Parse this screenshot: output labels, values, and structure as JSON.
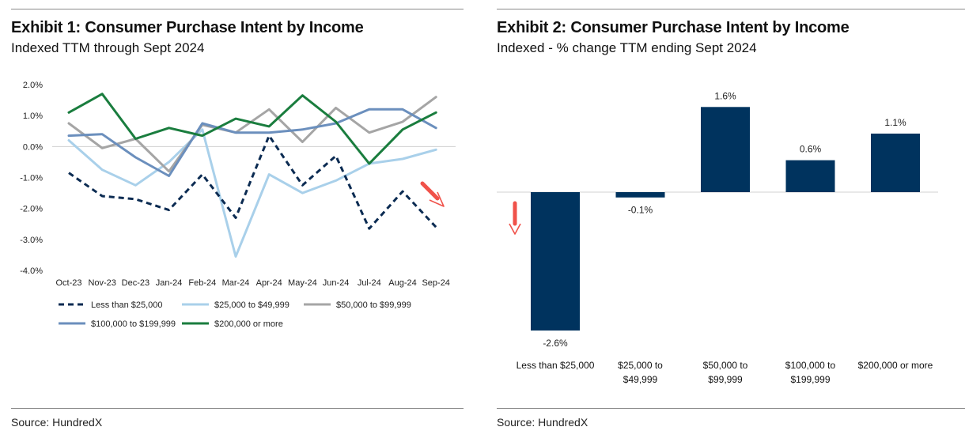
{
  "exhibit1": {
    "title": "Exhibit 1: Consumer Purchase Intent by Income",
    "subtitle": "Indexed TTM through Sept 2024",
    "source": "Source: HundredX",
    "chart_data": {
      "type": "line",
      "categories": [
        "Oct-23",
        "Nov-23",
        "Dec-23",
        "Jan-24",
        "Feb-24",
        "Mar-24",
        "Apr-24",
        "May-24",
        "Jun-24",
        "Jul-24",
        "Aug-24",
        "Sep-24"
      ],
      "y_ticks": [
        2.0,
        1.0,
        0.0,
        -1.0,
        -2.0,
        -3.0,
        -4.0
      ],
      "y_tick_labels": [
        "2.0%",
        "1.0%",
        "0.0%",
        "-1.0%",
        "-2.0%",
        "-3.0%",
        "-4.0%"
      ],
      "ylim": [
        -4.0,
        2.0
      ],
      "grid": false,
      "legend_position": "bottom",
      "series": [
        {
          "name": "Less than $25,000",
          "color": "#0b2b52",
          "dashed": true,
          "values": [
            -0.85,
            -1.6,
            -1.7,
            -2.05,
            -0.9,
            -2.3,
            0.35,
            -1.25,
            -0.3,
            -2.65,
            -1.45,
            -2.6
          ]
        },
        {
          "name": "$25,000 to $49,999",
          "color": "#a9d0ea",
          "dashed": false,
          "values": [
            0.2,
            -0.75,
            -1.25,
            -0.5,
            0.55,
            -3.55,
            -0.9,
            -1.5,
            -1.1,
            -0.55,
            -0.4,
            -0.1
          ]
        },
        {
          "name": "$50,000 to $99,999",
          "color": "#a5a5a5",
          "dashed": false,
          "values": [
            0.75,
            -0.05,
            0.25,
            -0.8,
            0.7,
            0.45,
            1.2,
            0.15,
            1.25,
            0.45,
            0.8,
            1.6
          ]
        },
        {
          "name": "$100,000 to $199,999",
          "color": "#6b8fbd",
          "dashed": false,
          "values": [
            0.35,
            0.4,
            -0.35,
            -0.95,
            0.75,
            0.45,
            0.45,
            0.55,
            0.75,
            1.2,
            1.2,
            0.6
          ]
        },
        {
          "name": "$200,000 or more",
          "color": "#1a7d3e",
          "dashed": false,
          "values": [
            1.1,
            1.7,
            0.25,
            0.6,
            0.35,
            0.9,
            0.65,
            1.65,
            0.8,
            -0.55,
            0.55,
            1.1
          ]
        }
      ]
    }
  },
  "exhibit2": {
    "title": "Exhibit 2: Consumer Purchase Intent by Income",
    "subtitle": "Indexed - % change TTM ending Sept 2024",
    "source": "Source: HundredX",
    "chart_data": {
      "type": "bar",
      "categories": [
        [
          "Less than $25,000"
        ],
        [
          "$25,000 to",
          "$49,999"
        ],
        [
          "$50,000 to",
          "$99,999"
        ],
        [
          "$100,000 to",
          "$199,999"
        ],
        [
          "$200,000 or more"
        ]
      ],
      "values": [
        -2.6,
        -0.1,
        1.6,
        0.6,
        1.1
      ],
      "data_labels": [
        "-2.6%",
        "-0.1%",
        "1.6%",
        "0.6%",
        "1.1%"
      ],
      "ylim": [
        -2.6,
        1.6
      ],
      "bar_color": "#00335e",
      "grid": false
    }
  },
  "colors": {
    "accent_arrow": "#f0524a",
    "rule": "#8a8a8a"
  },
  "icons": [
    "down-right-arrow-icon",
    "down-arrow-icon"
  ]
}
